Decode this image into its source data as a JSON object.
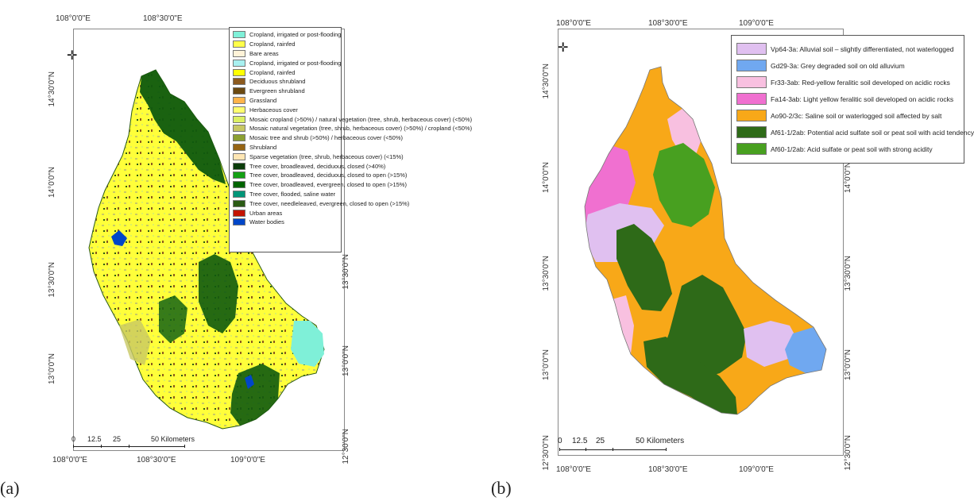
{
  "panel_a": {
    "label": "(a)",
    "top_ticks": [
      "108°0'0\"E",
      "108°30'0\"E"
    ],
    "bottom_ticks": [
      "108°0'0\"E",
      "108°30'0\"E",
      "109°0'0\"E"
    ],
    "left_ticks": [
      "14°30'0\"N",
      "14°0'0\"N",
      "13°30'0\"N",
      "13°0'0\"N"
    ],
    "right_ticks": [
      "13°30'0\"N",
      "13°0'0\"N",
      "12°30'0\"N"
    ],
    "scale": {
      "labels": [
        "0",
        "12.5",
        "25",
        "50 Kilometers"
      ]
    },
    "legend": [
      {
        "label": "Cropland, irrigated or post‑flooding",
        "color": "#7ff0d8"
      },
      {
        "label": "Cropland, rainfed",
        "color": "#ffff4a"
      },
      {
        "label": "Bare areas",
        "color": "#fff3d8"
      },
      {
        "label": "Cropland, irrigated or post‑flooding",
        "color": "#a8f0f0"
      },
      {
        "label": "Cropland, rainfed",
        "color": "#ffff00"
      },
      {
        "label": "Deciduous shrubland",
        "color": "#8c5a1e"
      },
      {
        "label": "Evergreen shrubland",
        "color": "#6b4a12"
      },
      {
        "label": "Grassland",
        "color": "#ffb44a"
      },
      {
        "label": "Herbaceous cover",
        "color": "#ffff70"
      },
      {
        "label": "Mosaic cropland (>50%) / natural vegetation (tree, shrub, herbaceous cover) (<50%)",
        "color": "#dcf064"
      },
      {
        "label": "Mosaic natural vegetation (tree, shrub, herbaceous cover) (>50%) / cropland (<50%)",
        "color": "#c8c864"
      },
      {
        "label": "Mosaic tree and shrub (>50%) / herbaceous cover (<50%)",
        "color": "#8ca032"
      },
      {
        "label": "Shrubland",
        "color": "#966414"
      },
      {
        "label": "Sparse vegetation (tree, shrub, herbaceous cover) (<15%)",
        "color": "#ffe6b4"
      },
      {
        "label": "Tree cover, broadleaved, deciduous, closed (>40%)",
        "color": "#0a3c0a"
      },
      {
        "label": "Tree cover, broadleaved, deciduous, closed to open (>15%)",
        "color": "#14a014"
      },
      {
        "label": "Tree cover, broadleaved, evergreen, closed to open (>15%)",
        "color": "#006400"
      },
      {
        "label": "Tree cover, flooded, saline water",
        "color": "#009678"
      },
      {
        "label": "Tree cover, needleleaved, evergreen, closed to open (>15%)",
        "color": "#2a5a14"
      },
      {
        "label": "Urban areas",
        "color": "#c31400"
      },
      {
        "label": "Water bodies",
        "color": "#0046c8"
      }
    ]
  },
  "panel_b": {
    "label": "(b)",
    "top_ticks": [
      "108°0'0\"E",
      "108°30'0\"E",
      "109°0'0\"E"
    ],
    "bottom_ticks": [
      "108°0'0\"E",
      "108°30'0\"E",
      "109°0'0\"E"
    ],
    "left_ticks": [
      "14°30'0\"N",
      "14°0'0\"N",
      "13°30'0\"N",
      "13°0'0\"N",
      "12°30'0\"N"
    ],
    "right_ticks": [
      "14°0'0\"N",
      "13°30'0\"N",
      "13°0'0\"N",
      "12°30'0\"N"
    ],
    "scale": {
      "labels": [
        "0",
        "12.5",
        "25",
        "50 Kilometers"
      ]
    },
    "legend": [
      {
        "label": "Vp64-3a: Alluvial soil – slightly differentiated, not waterlogged",
        "color": "#e0c0f0"
      },
      {
        "label": "Gd29-3a: Grey degraded soil on old alluvium",
        "color": "#70a8f0"
      },
      {
        "label": "Fr33-3ab: Red-yellow feralitic soil developed on acidic rocks",
        "color": "#f8c0e0"
      },
      {
        "label": "Fa14-3ab: Light yellow feralitic soil developed on acidic rocks",
        "color": "#f070d0"
      },
      {
        "label": "Ao90-2/3c: Saline soil or waterlogged soil affected by salt",
        "color": "#f8a818"
      },
      {
        "label": "Af61-1/2ab: Potential acid sulfate soil or peat soil with acid tendency",
        "color": "#2e6a18"
      },
      {
        "label": "Af60-1/2ab: Acid sulfate or peat soil with strong acidity",
        "color": "#48a020"
      }
    ]
  }
}
